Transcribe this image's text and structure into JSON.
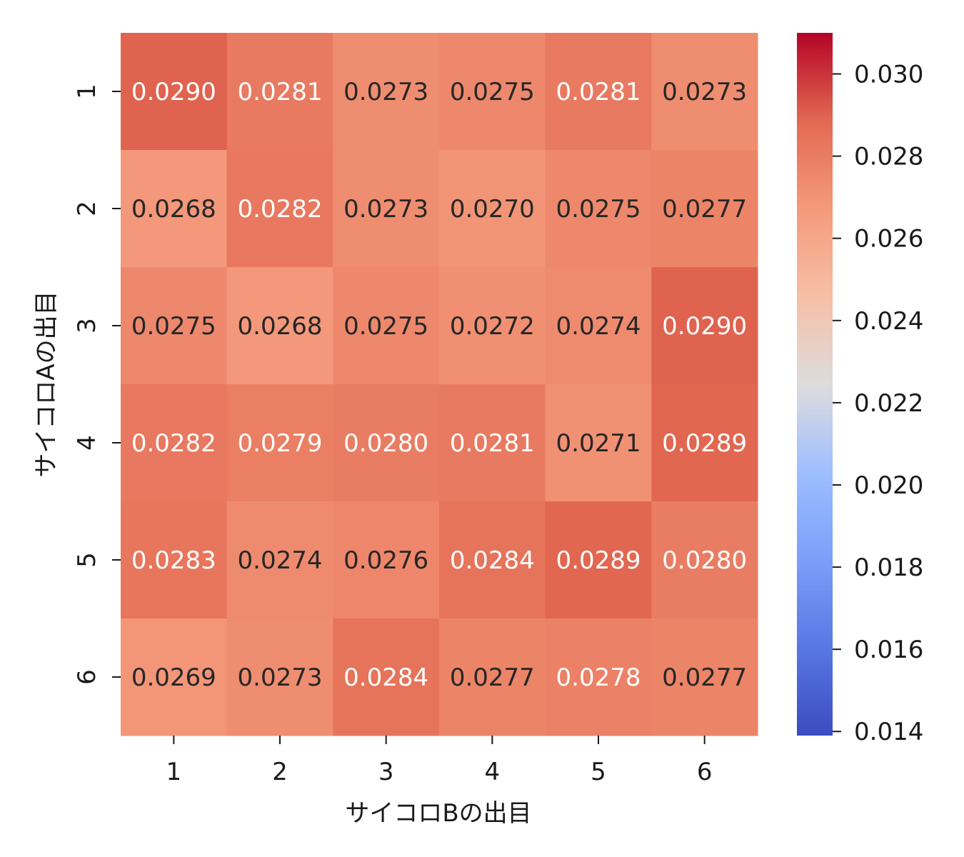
{
  "chart_data": {
    "type": "heatmap",
    "xlabel": "サイコロBの出目",
    "ylabel": "サイコロAの出目",
    "x_categories": [
      "1",
      "2",
      "3",
      "4",
      "5",
      "6"
    ],
    "y_categories": [
      "1",
      "2",
      "3",
      "4",
      "5",
      "6"
    ],
    "values": [
      [
        0.029,
        0.0281,
        0.0273,
        0.0275,
        0.0281,
        0.0273
      ],
      [
        0.0268,
        0.0282,
        0.0273,
        0.027,
        0.0275,
        0.0277
      ],
      [
        0.0275,
        0.0268,
        0.0275,
        0.0272,
        0.0274,
        0.029
      ],
      [
        0.0282,
        0.0279,
        0.028,
        0.0281,
        0.0271,
        0.0289
      ],
      [
        0.0283,
        0.0274,
        0.0276,
        0.0284,
        0.0289,
        0.028
      ],
      [
        0.0269,
        0.0273,
        0.0284,
        0.0277,
        0.0278,
        0.0277
      ]
    ],
    "labels": [
      [
        "0.0290",
        "0.0281",
        "0.0273",
        "0.0275",
        "0.0281",
        "0.0273"
      ],
      [
        "0.0268",
        "0.0282",
        "0.0273",
        "0.0270",
        "0.0275",
        "0.0277"
      ],
      [
        "0.0275",
        "0.0268",
        "0.0275",
        "0.0272",
        "0.0274",
        "0.0290"
      ],
      [
        "0.0282",
        "0.0279",
        "0.0280",
        "0.0281",
        "0.0271",
        "0.0289"
      ],
      [
        "0.0283",
        "0.0274",
        "0.0276",
        "0.0284",
        "0.0289",
        "0.0280"
      ],
      [
        "0.0269",
        "0.0273",
        "0.0284",
        "0.0277",
        "0.0278",
        "0.0277"
      ]
    ],
    "colormap": "coolwarm",
    "vmin": 0.0139,
    "vmax": 0.031,
    "colorbar_ticks": [
      "0.014",
      "0.016",
      "0.018",
      "0.020",
      "0.022",
      "0.024",
      "0.026",
      "0.028",
      "0.030"
    ],
    "grid": false,
    "legend": "colorbar-right"
  }
}
